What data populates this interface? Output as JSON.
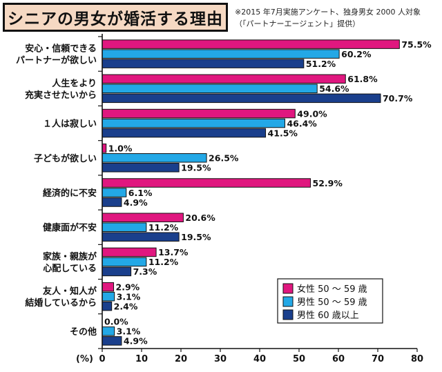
{
  "title": "シニアの男女が婚活する理由",
  "source_line1": "※2015 年7月実施アンケート、独身男女 2000 人対象",
  "source_line2": "（「パートナーエージェント」提供）",
  "chart_data": {
    "type": "bar",
    "orientation": "horizontal",
    "title": "シニアの男女が婚活する理由",
    "unit_label": "(%)",
    "xlim": [
      0,
      80
    ],
    "x_ticks": [
      "0",
      "10",
      "20",
      "30",
      "40",
      "50",
      "60",
      "70",
      "80"
    ],
    "categories": [
      [
        "安心・信頼できる",
        "パートナーが欲しい"
      ],
      [
        "人生をより",
        "充実させたいから"
      ],
      [
        "１人は寂しい"
      ],
      [
        "子どもが欲しい"
      ],
      [
        "経済的に不安"
      ],
      [
        "健康面が不安"
      ],
      [
        "家族・親族が",
        "心配している"
      ],
      [
        "友人・知人が",
        "結婚しているから"
      ],
      [
        "その他"
      ]
    ],
    "series": [
      {
        "name": "女性 50 〜 59 歳",
        "color": "#e0177f",
        "values": [
          75.5,
          61.8,
          49.0,
          1.0,
          52.9,
          20.6,
          13.7,
          2.9,
          0.0
        ],
        "labels": [
          "75.5%",
          "61.8%",
          "49.0%",
          "1.0%",
          "52.9%",
          "20.6%",
          "13.7%",
          "2.9%",
          "0.0%"
        ]
      },
      {
        "name": "男性 50 〜 59 歳",
        "color": "#23a8e6",
        "values": [
          60.2,
          54.6,
          46.4,
          26.5,
          6.1,
          11.2,
          11.2,
          3.1,
          3.1
        ],
        "labels": [
          "60.2%",
          "54.6%",
          "46.4%",
          "26.5%",
          "6.1%",
          "11.2%",
          "11.2%",
          "3.1%",
          "3.1%"
        ]
      },
      {
        "name": "男性 60 歳以上",
        "color": "#1a3f8c",
        "values": [
          51.2,
          70.7,
          41.5,
          19.5,
          4.9,
          19.5,
          7.3,
          2.4,
          4.9
        ],
        "labels": [
          "51.2%",
          "70.7%",
          "41.5%",
          "19.5%",
          "4.9%",
          "19.5%",
          "7.3%",
          "2.4%",
          "4.9%"
        ]
      }
    ],
    "grid": false,
    "legend_position": "bottom-right"
  }
}
